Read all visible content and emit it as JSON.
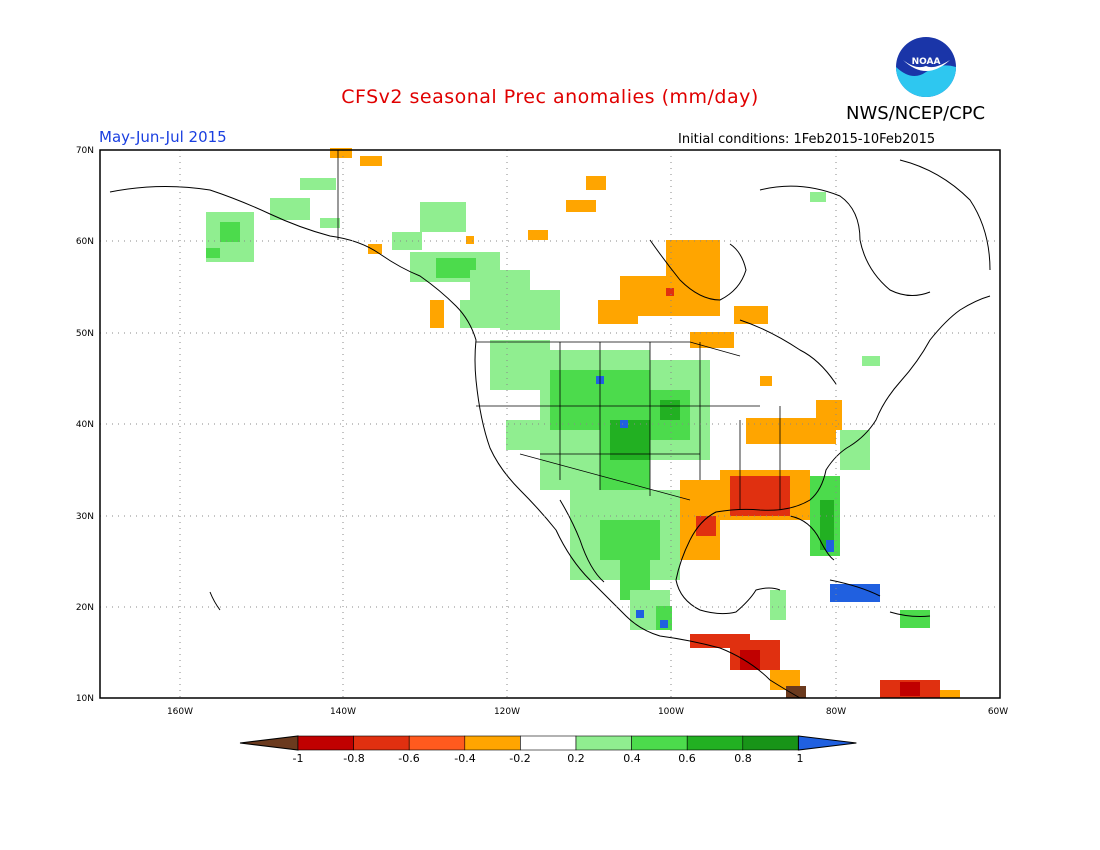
{
  "header": {
    "title": "CFSv2 seasonal Prec anomalies (mm/day)",
    "agency": "NWS/NCEP/CPC",
    "period": "May-Jun-Jul 2015",
    "initial_conditions": "Initial conditions: 1Feb2015-10Feb2015",
    "logo_text": "NOAA"
  },
  "map": {
    "projection": "lon-lat",
    "lon_range": [
      -172,
      -60
    ],
    "lat_range": [
      10,
      70
    ],
    "lat_ticks": [
      "70N",
      "60N",
      "50N",
      "40N",
      "30N",
      "20N",
      "10N"
    ],
    "lon_ticks": [
      "160W",
      "140W",
      "120W",
      "100W",
      "80W",
      "60W"
    ],
    "grid": "dotted"
  },
  "colorbar": {
    "labels": [
      "-1",
      "-0.8",
      "-0.6",
      "-0.4",
      "-0.2",
      "0.2",
      "0.4",
      "0.6",
      "0.8",
      "1"
    ],
    "colors": [
      "#6b3a1e",
      "#c00000",
      "#e03010",
      "#ff5a1e",
      "#ffa500",
      "#ffffff",
      "#90ee90",
      "#4cdb4c",
      "#22b022",
      "#189418",
      "#2060e0"
    ]
  }
}
